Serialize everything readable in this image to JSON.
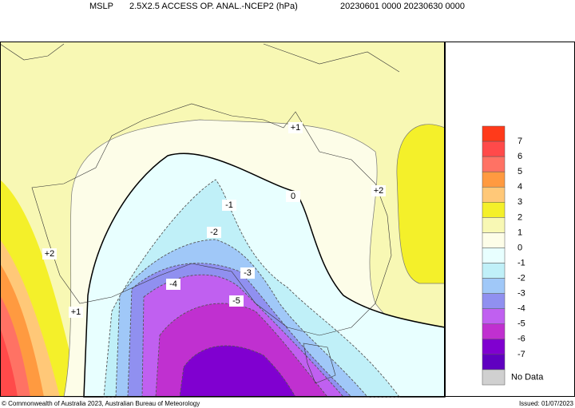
{
  "header": {
    "title": "MSLP",
    "subtitle": "2.5X2.5 ACCESS OP. ANAL.-NCEP2 (hPa)",
    "period": "20230601 0000 20230630 0000"
  },
  "contour_labels": [
    "+1",
    "0",
    "+2",
    "-1",
    "-2",
    "+2",
    "-3",
    "-4",
    "-5",
    "+1"
  ],
  "legend": {
    "colors": [
      "#ff3a1a",
      "#ff4a4a",
      "#ff7264",
      "#ff9a40",
      "#ffc878",
      "#f4f02a",
      "#f8f8b4",
      "#fdfde8",
      "#e8ffff",
      "#c0f0f8",
      "#a0c8f8",
      "#9090f0",
      "#c060f0",
      "#c030d0",
      "#8000d0",
      "#6000c0"
    ],
    "labels": [
      "7",
      "6",
      "5",
      "4",
      "3",
      "2",
      "1",
      "0",
      "-1",
      "-2",
      "-3",
      "-4",
      "-5",
      "-6",
      "-7"
    ],
    "no_data": "No Data",
    "no_data_color": "#d0d0d0"
  },
  "footer": {
    "copyright": "© Commonwealth of Australia 2023, Australian Bureau of Meteorology",
    "issued": "Issued: 01/07/2023"
  }
}
